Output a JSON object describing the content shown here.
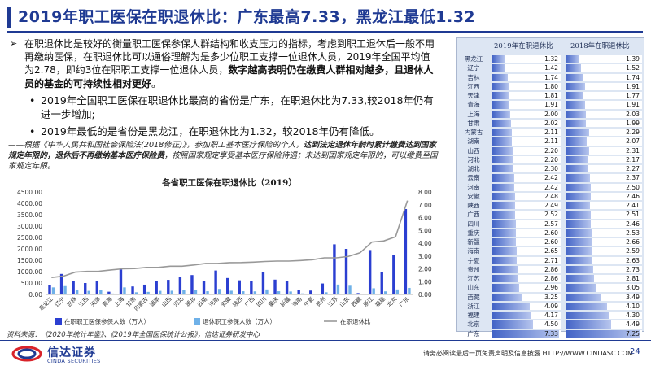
{
  "title": "2019年职工医保在职退休比：广东最高7.33，黑龙江最低1.32",
  "body": {
    "para_a": "在职退休比是较好的衡量职工医保参保人群结构和收支压力的指标，考虑到职工退休后一般不用再缴纳医保，在职退休比可以通俗理解为是多少位职工支撑一位退休人员，2019年全国平均值为2.78，即约3位在职职工支撑一位退休人员，",
    "para_b": "数字越高表明仍在缴费人群相对越多，且退休人员的基金的可持续性相对更好",
    "para_c": "。",
    "bullet1": "2019年全国职工医保在职退休比最高的省份是广东，在职退休比为7.33,较2018年仍有进一步增加;",
    "bullet2": "2019年最低的是省份是黑龙江，在职退休比为1.32，较2018年仍有降低。"
  },
  "note": {
    "part_a": "——根据《中华人民共和国社会保险法(2018修正)》，参加职工基本医疗保险的个人，",
    "part_b": "达到法定退休年龄时累计缴费达到国家规定年限的，退休后不再缴纳基本医疗保险费",
    "part_c": "，按照国家规定享受基本医疗保险待遇；未达到国家规定年限的，可以缴费至国家规定年限。"
  },
  "source": "资料来源：《2020年统计年鉴》、《2019年全国医保统计公报》，信达证券研发中心",
  "table": {
    "col1": "2019年在职退休比",
    "col2": "2018年在职退休比",
    "rows": [
      {
        "prov": "黑龙江",
        "v2019": "1.32",
        "v2018": "1.39"
      },
      {
        "prov": "辽宁",
        "v2019": "1.42",
        "v2018": "1.52"
      },
      {
        "prov": "吉林",
        "v2019": "1.74",
        "v2018": "1.74"
      },
      {
        "prov": "江西",
        "v2019": "1.80",
        "v2018": "1.91"
      },
      {
        "prov": "天津",
        "v2019": "1.81",
        "v2018": "1.77"
      },
      {
        "prov": "青海",
        "v2019": "1.91",
        "v2018": "1.91"
      },
      {
        "prov": "上海",
        "v2019": "2.00",
        "v2018": "2.03"
      },
      {
        "prov": "甘肃",
        "v2019": "2.02",
        "v2018": "1.99"
      },
      {
        "prov": "内蒙古",
        "v2019": "2.11",
        "v2018": "2.29"
      },
      {
        "prov": "湖南",
        "v2019": "2.11",
        "v2018": "2.07"
      },
      {
        "prov": "山西",
        "v2019": "2.20",
        "v2018": "2.31"
      },
      {
        "prov": "河北",
        "v2019": "2.20",
        "v2018": "2.17"
      },
      {
        "prov": "湖北",
        "v2019": "2.30",
        "v2018": "2.27"
      },
      {
        "prov": "云南",
        "v2019": "2.42",
        "v2018": "2.37"
      },
      {
        "prov": "河南",
        "v2019": "2.42",
        "v2018": "2.50"
      },
      {
        "prov": "安徽",
        "v2019": "2.48",
        "v2018": "2.46"
      },
      {
        "prov": "陕西",
        "v2019": "2.49",
        "v2018": "2.41"
      },
      {
        "prov": "广西",
        "v2019": "2.52",
        "v2018": "2.51"
      },
      {
        "prov": "四川",
        "v2019": "2.57",
        "v2018": "2.46"
      },
      {
        "prov": "重庆",
        "v2019": "2.60",
        "v2018": "2.53"
      },
      {
        "prov": "新疆",
        "v2019": "2.60",
        "v2018": "2.66"
      },
      {
        "prov": "海南",
        "v2019": "2.65",
        "v2018": "2.59"
      },
      {
        "prov": "宁夏",
        "v2019": "2.71",
        "v2018": "2.63"
      },
      {
        "prov": "贵州",
        "v2019": "2.86",
        "v2018": "2.73"
      },
      {
        "prov": "江苏",
        "v2019": "2.86",
        "v2018": "2.81"
      },
      {
        "prov": "山东",
        "v2019": "2.96",
        "v2018": "3.05"
      },
      {
        "prov": "西藏",
        "v2019": "3.25",
        "v2018": "3.49"
      },
      {
        "prov": "浙江",
        "v2019": "4.09",
        "v2018": "4.10"
      },
      {
        "prov": "福建",
        "v2019": "4.17",
        "v2018": "4.30"
      },
      {
        "prov": "北京",
        "v2019": "4.50",
        "v2018": "4.49"
      },
      {
        "prov": "广东",
        "v2019": "7.33",
        "v2018": "7.25"
      }
    ]
  },
  "chart_data": {
    "type": "bar",
    "title": "各省职工医保在职退休比（2019）",
    "categories": [
      "黑龙江",
      "辽宁",
      "吉林",
      "江西",
      "天津",
      "青海",
      "上海",
      "甘肃",
      "内蒙古",
      "湖南",
      "山西",
      "河北",
      "湖北",
      "云南",
      "河南",
      "安徽",
      "陕西",
      "广西",
      "四川",
      "重庆",
      "新疆",
      "海南",
      "宁夏",
      "贵州",
      "江苏",
      "山东",
      "西藏",
      "浙江",
      "福建",
      "北京",
      "广东"
    ],
    "series": [
      {
        "name": "在职职工医保参保人数（万人）",
        "axis": "left",
        "type": "bar",
        "color": "#2b3fd1",
        "values": [
          400,
          900,
          600,
          500,
          600,
          120,
          1100,
          350,
          430,
          600,
          640,
          780,
          850,
          600,
          1050,
          720,
          620,
          600,
          1000,
          650,
          600,
          210,
          170,
          480,
          2200,
          2000,
          60,
          1950,
          1000,
          1750,
          3750
        ]
      },
      {
        "name": "退休职工参保人数（万人）",
        "axis": "right",
        "type": "bar",
        "color": "#6fb1e8",
        "values": [
          0.55,
          0.65,
          0.35,
          0.28,
          0.33,
          0.07,
          0.55,
          0.17,
          0.2,
          0.28,
          0.29,
          0.36,
          0.37,
          0.25,
          0.43,
          0.29,
          0.25,
          0.24,
          0.39,
          0.25,
          0.23,
          0.08,
          0.06,
          0.17,
          0.77,
          0.68,
          0.02,
          0.48,
          0.24,
          0.39,
          0.51
        ]
      },
      {
        "name": "在职退休比",
        "axis": "right",
        "type": "line",
        "color": "#999999",
        "values": [
          1.32,
          1.42,
          1.74,
          1.8,
          1.81,
          1.91,
          2.0,
          2.02,
          2.11,
          2.11,
          2.2,
          2.2,
          2.3,
          2.42,
          2.42,
          2.48,
          2.49,
          2.52,
          2.57,
          2.6,
          2.6,
          2.65,
          2.71,
          2.86,
          2.86,
          2.96,
          3.25,
          4.09,
          4.17,
          4.5,
          7.33
        ]
      }
    ],
    "left_ticks": [
      "4500.00",
      "4000.00",
      "3500.00",
      "3000.00",
      "2500.00",
      "2000.00",
      "1500.00",
      "1000.00",
      "500.00",
      "0.00"
    ],
    "right_ticks": [
      "8.00",
      "7.00",
      "6.00",
      "5.00",
      "4.00",
      "3.00",
      "2.00",
      "1.00",
      "0.00"
    ],
    "ylim_left": [
      0,
      4500
    ],
    "ylim_right": [
      0,
      8
    ],
    "legend_position": "bottom"
  },
  "footer": {
    "logo_cn": "信达证券",
    "logo_en": "CINDA SECURITIES",
    "disclaimer": "请务必阅读最后一页免责声明及信息披露  HTTP://WWW.CINDASC.COM",
    "page": "24"
  },
  "colors": {
    "brand": "#1f3a93",
    "bar_main": "#2b3fd1",
    "bar_light": "#6fb1e8",
    "line": "#999999"
  }
}
